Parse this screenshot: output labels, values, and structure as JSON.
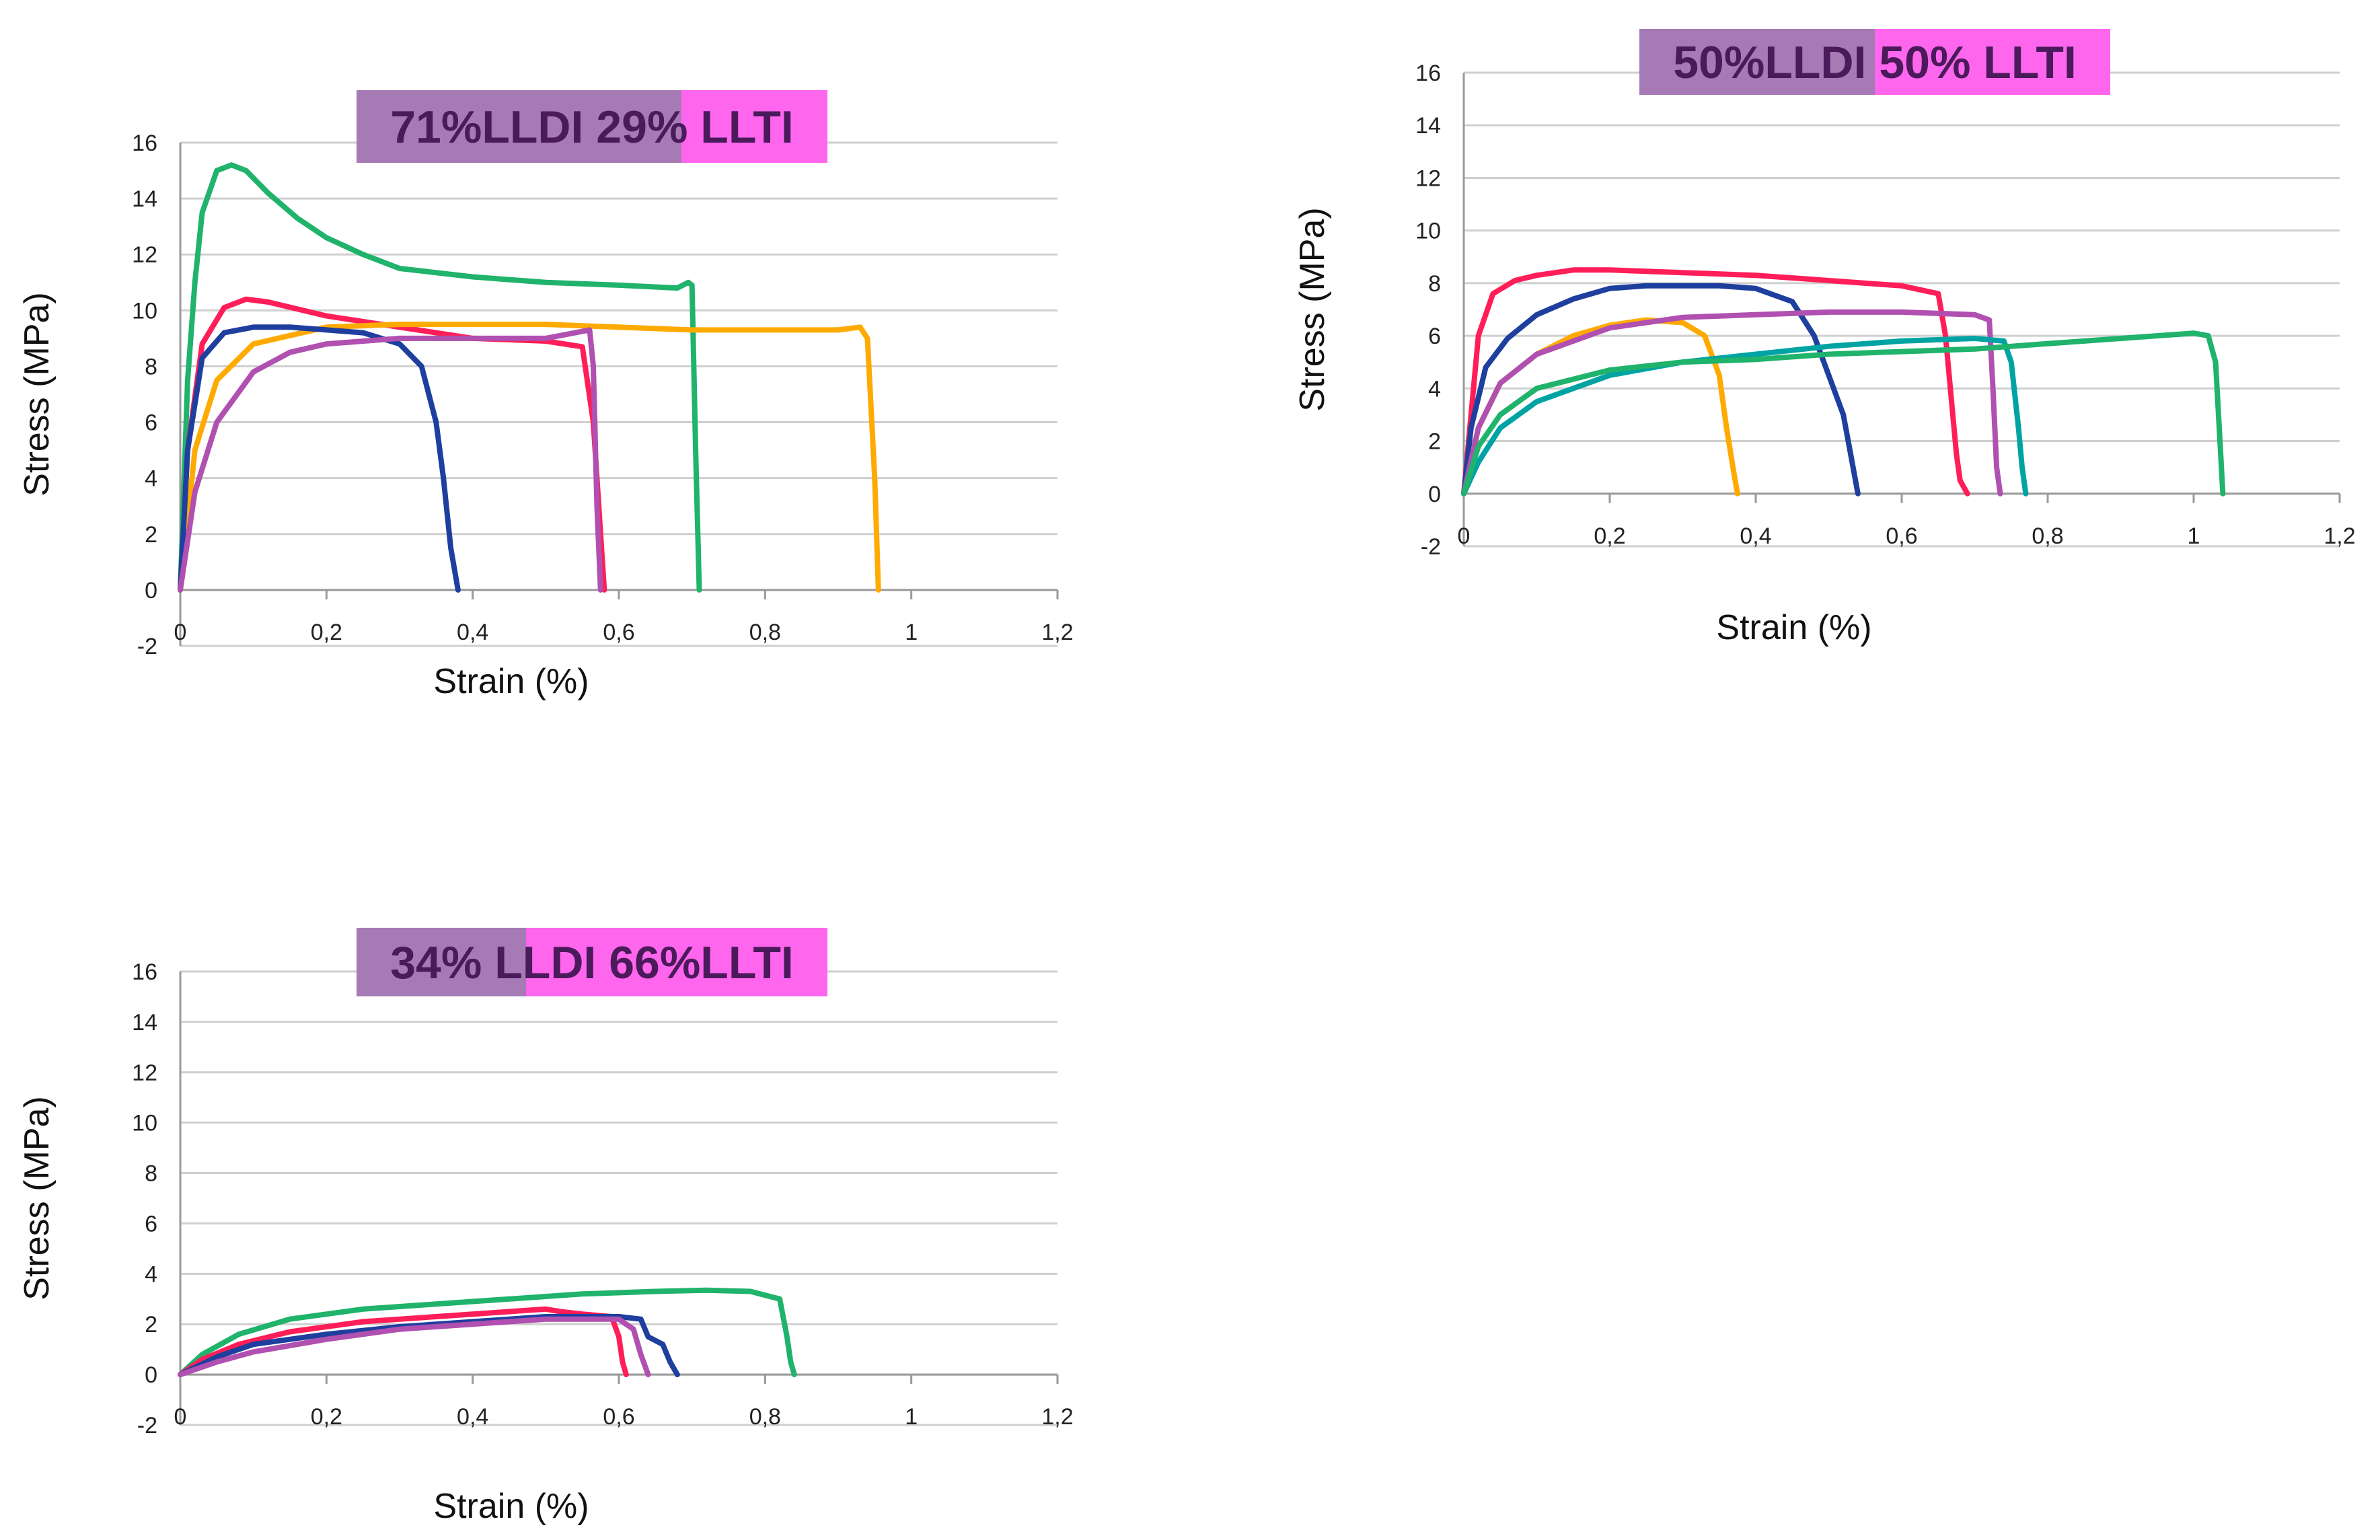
{
  "chart_data": [
    {
      "type": "line",
      "title_parts": [
        "71%LLDI 29%",
        " LLTI"
      ],
      "title_colors": [
        "#a67bb5",
        "#ff66ee"
      ],
      "title_split": 0.69,
      "xlabel": "Strain (%)",
      "ylabel": "Stress (MPa)",
      "xlim": [
        0,
        1.2
      ],
      "ylim": [
        -2,
        16
      ],
      "xticks": [
        "0",
        "0,2",
        "0,4",
        "0,6",
        "0,8",
        "1",
        "1,2"
      ],
      "yticks": [
        "-2",
        "0",
        "2",
        "4",
        "6",
        "8",
        "10",
        "12",
        "14",
        "16"
      ],
      "grid": true,
      "series": [
        {
          "color": "#1fb36b",
          "x": [
            0,
            0.01,
            0.02,
            0.03,
            0.05,
            0.07,
            0.09,
            0.12,
            0.16,
            0.2,
            0.25,
            0.3,
            0.4,
            0.5,
            0.6,
            0.68,
            0.695,
            0.7,
            0.705,
            0.71
          ],
          "y": [
            0,
            7.5,
            11,
            13.5,
            15,
            15.2,
            15,
            14.2,
            13.3,
            12.6,
            12,
            11.5,
            11.2,
            11.0,
            10.9,
            10.8,
            11,
            10.9,
            5,
            0
          ]
        },
        {
          "color": "#ff1e58",
          "x": [
            0,
            0.01,
            0.03,
            0.06,
            0.09,
            0.12,
            0.2,
            0.3,
            0.4,
            0.5,
            0.55,
            0.565,
            0.575,
            0.58
          ],
          "y": [
            0,
            5,
            8.8,
            10.1,
            10.4,
            10.3,
            9.8,
            9.4,
            9.0,
            8.9,
            8.7,
            6,
            2,
            0
          ]
        },
        {
          "color": "#ffaa00",
          "x": [
            0,
            0.02,
            0.05,
            0.1,
            0.2,
            0.3,
            0.4,
            0.5,
            0.6,
            0.7,
            0.8,
            0.9,
            0.93,
            0.94,
            0.95,
            0.955
          ],
          "y": [
            0,
            5,
            7.5,
            8.8,
            9.4,
            9.5,
            9.5,
            9.5,
            9.4,
            9.3,
            9.3,
            9.3,
            9.4,
            9,
            4,
            0
          ]
        },
        {
          "color": "#1f3f9f",
          "x": [
            0,
            0.01,
            0.03,
            0.06,
            0.1,
            0.15,
            0.2,
            0.25,
            0.3,
            0.33,
            0.35,
            0.36,
            0.37,
            0.38
          ],
          "y": [
            0,
            5,
            8.3,
            9.2,
            9.4,
            9.4,
            9.3,
            9.2,
            8.8,
            8.0,
            6.0,
            4.0,
            1.5,
            0
          ]
        },
        {
          "color": "#b050b0",
          "x": [
            0,
            0.02,
            0.05,
            0.1,
            0.15,
            0.2,
            0.3,
            0.4,
            0.5,
            0.56,
            0.565,
            0.57,
            0.575
          ],
          "y": [
            0,
            3.5,
            6,
            7.8,
            8.5,
            8.8,
            9.0,
            9.0,
            9.0,
            9.3,
            8,
            3,
            0
          ]
        }
      ]
    },
    {
      "type": "line",
      "title_parts": [
        "50%LLDI ",
        "50% LLTI"
      ],
      "title_colors": [
        "#a67bb5",
        "#ff66ee"
      ],
      "title_split": 0.5,
      "xlabel": "Strain (%)",
      "ylabel": "Stress (MPa)",
      "xlim": [
        0,
        1.2
      ],
      "ylim": [
        -2,
        16
      ],
      "xticks": [
        "0",
        "0,2",
        "0,4",
        "0,6",
        "0,8",
        "1",
        "1,2"
      ],
      "yticks": [
        "-2",
        "0",
        "2",
        "4",
        "6",
        "8",
        "10",
        "12",
        "14",
        "16"
      ],
      "grid": true,
      "series": [
        {
          "color": "#ff1e58",
          "x": [
            0,
            0.01,
            0.02,
            0.04,
            0.07,
            0.1,
            0.15,
            0.2,
            0.3,
            0.4,
            0.5,
            0.6,
            0.65,
            0.66,
            0.67,
            0.675,
            0.68,
            0.69
          ],
          "y": [
            0,
            3,
            6,
            7.6,
            8.1,
            8.3,
            8.5,
            8.5,
            8.4,
            8.3,
            8.1,
            7.9,
            7.6,
            6,
            3,
            1.5,
            0.5,
            0
          ]
        },
        {
          "color": "#1f3f9f",
          "x": [
            0,
            0.01,
            0.03,
            0.06,
            0.1,
            0.15,
            0.2,
            0.25,
            0.3,
            0.35,
            0.4,
            0.45,
            0.48,
            0.5,
            0.52,
            0.53,
            0.54
          ],
          "y": [
            0,
            2.5,
            4.8,
            5.9,
            6.8,
            7.4,
            7.8,
            7.9,
            7.9,
            7.9,
            7.8,
            7.3,
            6,
            4.5,
            3,
            1.5,
            0
          ]
        },
        {
          "color": "#ffaa00",
          "x": [
            0,
            0.02,
            0.05,
            0.1,
            0.15,
            0.2,
            0.25,
            0.3,
            0.33,
            0.35,
            0.36,
            0.37,
            0.375
          ],
          "y": [
            0,
            2.5,
            4.2,
            5.3,
            6,
            6.4,
            6.6,
            6.5,
            6.0,
            4.5,
            2.5,
            0.8,
            0
          ]
        },
        {
          "color": "#b050b0",
          "x": [
            0,
            0.02,
            0.05,
            0.1,
            0.2,
            0.3,
            0.4,
            0.5,
            0.6,
            0.7,
            0.72,
            0.725,
            0.73,
            0.735
          ],
          "y": [
            0,
            2.5,
            4.2,
            5.3,
            6.3,
            6.7,
            6.8,
            6.9,
            6.9,
            6.8,
            6.6,
            4,
            1,
            0
          ]
        },
        {
          "color": "#00a3a3",
          "x": [
            0,
            0.02,
            0.05,
            0.1,
            0.2,
            0.3,
            0.4,
            0.5,
            0.6,
            0.7,
            0.74,
            0.75,
            0.76,
            0.765,
            0.77
          ],
          "y": [
            0,
            1.2,
            2.5,
            3.5,
            4.5,
            5.0,
            5.3,
            5.6,
            5.8,
            5.9,
            5.8,
            5,
            2.5,
            1,
            0
          ]
        },
        {
          "color": "#1fb36b",
          "x": [
            0,
            0.02,
            0.05,
            0.1,
            0.2,
            0.3,
            0.4,
            0.5,
            0.6,
            0.7,
            0.8,
            0.9,
            1.0,
            1.02,
            1.03,
            1.035,
            1.04
          ],
          "y": [
            0,
            1.8,
            3.0,
            4.0,
            4.7,
            5.0,
            5.1,
            5.3,
            5.4,
            5.5,
            5.7,
            5.9,
            6.1,
            6.0,
            5,
            2.5,
            0
          ]
        }
      ]
    },
    {
      "type": "line",
      "title_parts": [
        "34% LL",
        "DI 66%LLTI"
      ],
      "title_colors": [
        "#a67bb5",
        "#ff66ee"
      ],
      "title_split": 0.36,
      "xlabel": "Strain (%)",
      "ylabel": "Stress (MPa)",
      "xlim": [
        0,
        1.2
      ],
      "ylim": [
        -2,
        16
      ],
      "xticks": [
        "0",
        "0,2",
        "0,4",
        "0,6",
        "0,8",
        "1",
        "1,2"
      ],
      "yticks": [
        "-2",
        "0",
        "2",
        "4",
        "6",
        "8",
        "10",
        "12",
        "14",
        "16"
      ],
      "grid": true,
      "series": [
        {
          "color": "#1fb36b",
          "x": [
            0,
            0.03,
            0.08,
            0.15,
            0.25,
            0.35,
            0.45,
            0.55,
            0.65,
            0.72,
            0.78,
            0.82,
            0.83,
            0.835,
            0.84
          ],
          "y": [
            0,
            0.8,
            1.6,
            2.2,
            2.6,
            2.8,
            3.0,
            3.2,
            3.3,
            3.35,
            3.3,
            3.0,
            1.5,
            0.5,
            0
          ]
        },
        {
          "color": "#ff1e58",
          "x": [
            0,
            0.03,
            0.08,
            0.15,
            0.25,
            0.35,
            0.45,
            0.5,
            0.52,
            0.55,
            0.59,
            0.6,
            0.605,
            0.61
          ],
          "y": [
            0,
            0.6,
            1.2,
            1.7,
            2.1,
            2.3,
            2.5,
            2.6,
            2.5,
            2.4,
            2.3,
            1.5,
            0.5,
            0
          ]
        },
        {
          "color": "#1f3f9f",
          "x": [
            0,
            0.05,
            0.1,
            0.2,
            0.3,
            0.4,
            0.5,
            0.6,
            0.63,
            0.64,
            0.66,
            0.67,
            0.68
          ],
          "y": [
            0,
            0.7,
            1.2,
            1.6,
            1.9,
            2.1,
            2.3,
            2.3,
            2.2,
            1.5,
            1.2,
            0.5,
            0
          ]
        },
        {
          "color": "#b050b0",
          "x": [
            0,
            0.05,
            0.1,
            0.2,
            0.3,
            0.4,
            0.5,
            0.6,
            0.62,
            0.63,
            0.64
          ],
          "y": [
            0,
            0.5,
            0.9,
            1.4,
            1.8,
            2.0,
            2.2,
            2.2,
            1.8,
            0.8,
            0
          ]
        }
      ]
    }
  ]
}
